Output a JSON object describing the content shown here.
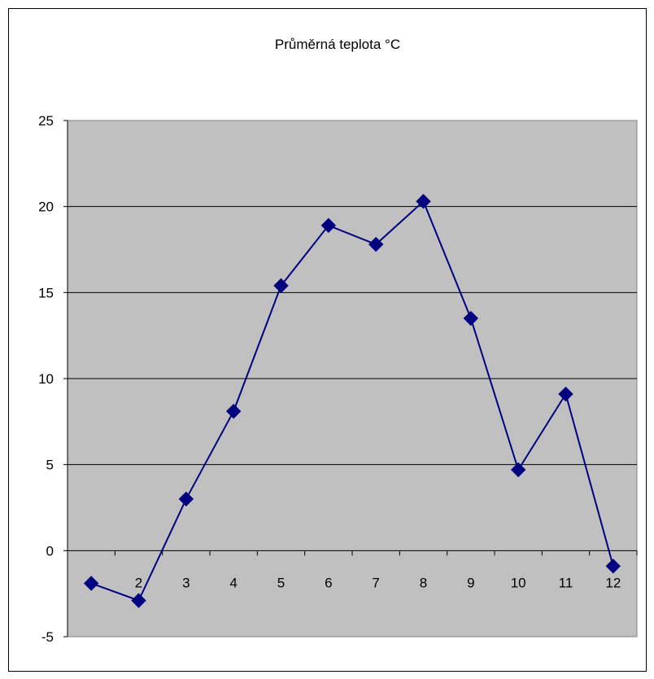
{
  "chart_data": {
    "type": "line",
    "title": "Průměrná teplota °C",
    "xlabel": "",
    "ylabel": "",
    "categories": [
      "1",
      "2",
      "3",
      "4",
      "5",
      "6",
      "7",
      "8",
      "9",
      "10",
      "11",
      "12"
    ],
    "series": [
      {
        "values": [
          -1.9,
          -2.9,
          3.0,
          8.1,
          15.4,
          18.9,
          17.8,
          20.3,
          13.5,
          4.7,
          9.1,
          -0.9
        ],
        "color": "#000080"
      }
    ],
    "ylim": [
      -5,
      25
    ],
    "yticks": [
      25,
      20,
      15,
      10,
      5,
      0,
      -5
    ],
    "grid": true,
    "legend": "none",
    "plot_background": "#c0c0c0",
    "marker": "diamond"
  }
}
